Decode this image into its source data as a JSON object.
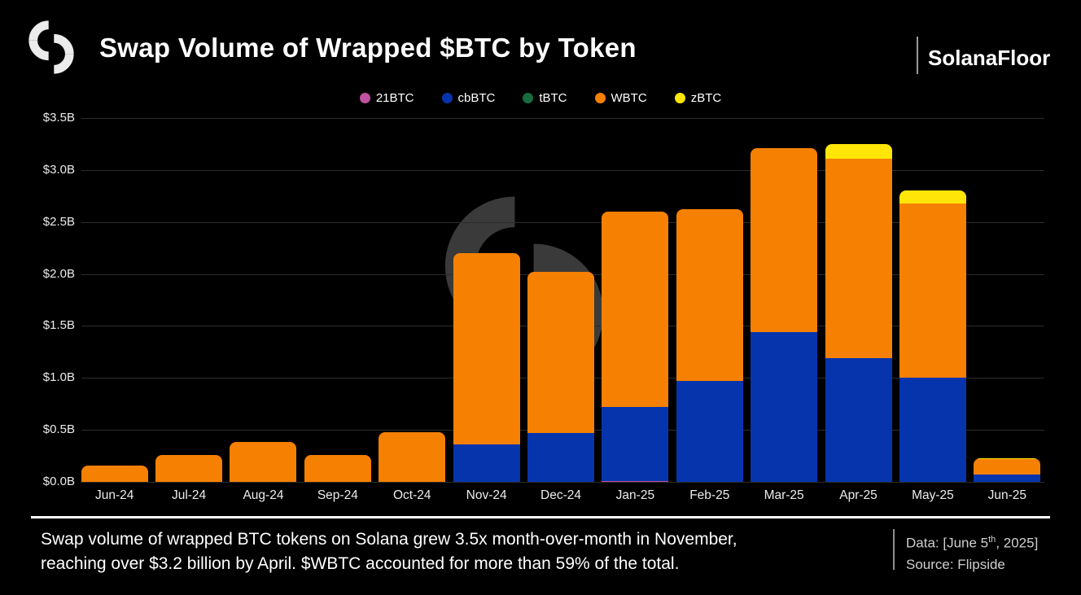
{
  "header": {
    "title": "Swap Volume of Wrapped $BTC by Token",
    "brand": "SolanaFloor"
  },
  "chart_data": {
    "type": "bar",
    "stacked": true,
    "title": "Swap Volume of Wrapped $BTC by Token",
    "unit": "billions USD",
    "grid": "horizontal",
    "legend_position": "top",
    "ylim": [
      0,
      3.5
    ],
    "categories": [
      "Jun-24",
      "Jul-24",
      "Aug-24",
      "Sep-24",
      "Oct-24",
      "Nov-24",
      "Dec-24",
      "Jan-25",
      "Feb-25",
      "Mar-25",
      "Apr-25",
      "May-25",
      "Jun-25"
    ],
    "series": [
      {
        "name": "21BTC",
        "color": "#c0529f",
        "values": [
          0,
          0,
          0,
          0,
          0,
          0,
          0,
          0.01,
          0,
          0,
          0,
          0,
          0
        ]
      },
      {
        "name": "cbBTC",
        "color": "#0534ad",
        "values": [
          0,
          0,
          0,
          0,
          0,
          0.36,
          0.47,
          0.71,
          0.97,
          1.44,
          1.19,
          1.0,
          0.07
        ]
      },
      {
        "name": "tBTC",
        "color": "#176b3e",
        "values": [
          0,
          0,
          0,
          0,
          0,
          0,
          0,
          0,
          0,
          0,
          0,
          0,
          0
        ]
      },
      {
        "name": "WBTC",
        "color": "#f68002",
        "values": [
          0.16,
          0.26,
          0.38,
          0.26,
          0.48,
          1.84,
          1.55,
          1.88,
          1.65,
          1.77,
          1.92,
          1.68,
          0.15
        ]
      },
      {
        "name": "zBTC",
        "color": "#ffe608",
        "values": [
          0,
          0,
          0,
          0,
          0,
          0,
          0,
          0,
          0,
          0,
          0.14,
          0.12,
          0.01
        ]
      }
    ],
    "y_ticks": [
      {
        "value": 0.0,
        "label": "$0.0B"
      },
      {
        "value": 0.5,
        "label": "$0.5B"
      },
      {
        "value": 1.0,
        "label": "$1.0B"
      },
      {
        "value": 1.5,
        "label": "$1.5B"
      },
      {
        "value": 2.0,
        "label": "$2.0B"
      },
      {
        "value": 2.5,
        "label": "$2.5B"
      },
      {
        "value": 3.0,
        "label": "$3.0B"
      },
      {
        "value": 3.5,
        "label": "$3.5B"
      }
    ]
  },
  "footer": {
    "caption_line1": "Swap volume of wrapped BTC tokens on Solana grew 3.5x month-over-month in November,",
    "caption_line2": "reaching over $3.2 billion by April. $WBTC accounted for more than 59% of the total.",
    "data_date_prefix": "Data: [June 5",
    "data_date_sup": "th",
    "data_date_suffix": ", 2025]",
    "source": "Source: Flipside"
  }
}
